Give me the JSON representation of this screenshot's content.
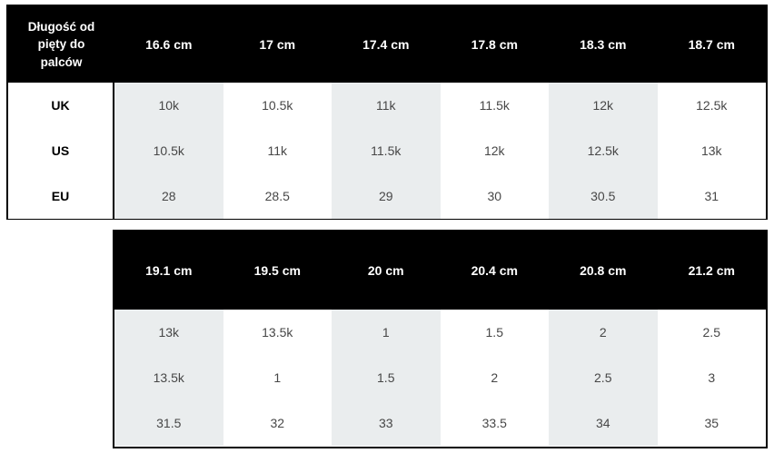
{
  "tables": [
    {
      "id": "size-chart-smaller",
      "corner_label": "Długość od pięty do palców",
      "column_headers": [
        "16.6 cm",
        "17 cm",
        "17.4 cm",
        "17.8 cm",
        "18.3 cm",
        "18.7 cm"
      ],
      "rows": [
        {
          "label": "UK",
          "values": [
            "10k",
            "10.5k",
            "11k",
            "11.5k",
            "12k",
            "12.5k"
          ]
        },
        {
          "label": "US",
          "values": [
            "10.5k",
            "11k",
            "11.5k",
            "12k",
            "12.5k",
            "13k"
          ]
        },
        {
          "label": "EU",
          "values": [
            "28",
            "28.5",
            "29",
            "30",
            "30.5",
            "31"
          ]
        }
      ]
    },
    {
      "id": "size-chart-larger",
      "column_headers": [
        "19.1 cm",
        "19.5 cm",
        "20 cm",
        "20.4 cm",
        "20.8 cm",
        "21.2 cm"
      ],
      "rows": [
        {
          "values": [
            "13k",
            "13.5k",
            "1",
            "1.5",
            "2",
            "2.5"
          ]
        },
        {
          "values": [
            "13.5k",
            "1",
            "1.5",
            "2",
            "2.5",
            "3"
          ]
        },
        {
          "values": [
            "31.5",
            "32",
            "33",
            "33.5",
            "34",
            "35"
          ]
        }
      ]
    }
  ],
  "colors": {
    "header_background": "#000000",
    "header_text": "#ffffff",
    "shaded_column": "#eaedee",
    "cell_text": "#474747",
    "row_label_text": "#000000",
    "table_border": "#000000",
    "page_background": "#ffffff"
  }
}
